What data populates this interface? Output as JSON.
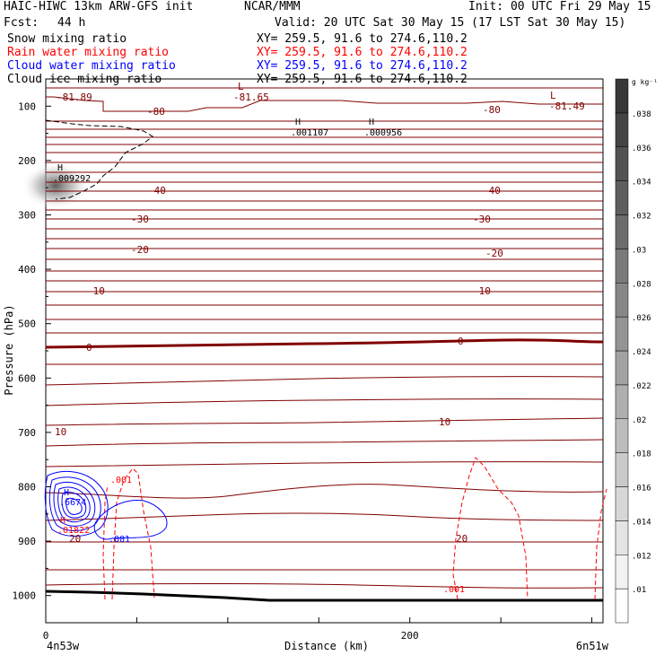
{
  "header": {
    "model": "HAIC-HIWC 13km ARW-GFS init",
    "org": "NCAR/MMM",
    "init": "Init: 00 UTC Fri 29 May 15",
    "fcst_label": "Fcst:",
    "fcst_value": "44 h",
    "valid": "Valid: 20 UTC Sat 30 May 15 (17 LST Sat 30 May 15)",
    "fields": [
      {
        "name": "Snow mixing ratio",
        "xy": "XY= 259.5, 91.6 to 274.6,110.2",
        "color": "#000000"
      },
      {
        "name": "Rain water mixing ratio",
        "xy": "XY= 259.5, 91.6 to 274.6,110.2",
        "color": "#ff0000"
      },
      {
        "name": "Cloud water mixing ratio",
        "xy": "XY= 259.5, 91.6 to 274.6,110.2",
        "color": "#0000ff"
      },
      {
        "name": "Cloud ice mixing ratio",
        "xy": "XY= 259.5, 91.6 to 274.6,110.2",
        "color": "#000000"
      }
    ]
  },
  "chart_data": {
    "type": "cross-section",
    "xlabel": "Distance (km)",
    "ylabel": "Pressure (hPa)",
    "xlim": [
      0,
      300
    ],
    "ylim": [
      1050,
      50
    ],
    "yscale": "log",
    "x_ticks": [
      "0",
      "200"
    ],
    "y_ticks": [
      "100",
      "200",
      "300",
      "400",
      "500",
      "600",
      "700",
      "800",
      "900",
      "1000"
    ],
    "left_endpoint": "4n53w",
    "right_endpoint": "6n51w",
    "colorbar": {
      "unit": "g kg⁻¹",
      "ticks": [
        ".01",
        ".012",
        ".014",
        ".016",
        ".018",
        ".02",
        ".022",
        ".024",
        ".026",
        ".028",
        ".03",
        ".032",
        ".034",
        ".036",
        ".038"
      ]
    },
    "temperature_labels": [
      "-81.89",
      "-81.65",
      "-81.49",
      "-80",
      "-80",
      "-40",
      "-40",
      "-30",
      "-30",
      "-20",
      "-20",
      "-10",
      "-10",
      "0",
      "0",
      "10",
      "10",
      "20",
      "20"
    ],
    "low_markers": [
      {
        "label": "L",
        "value": "-81.65"
      },
      {
        "label": "L",
        "value": "-81.49"
      }
    ],
    "high_markers": [
      {
        "label": "H",
        "value": ".001107"
      },
      {
        "label": "H",
        "value": ".000956"
      },
      {
        "label": "H",
        "value": ".009292"
      },
      {
        "label": "H",
        "value": ".6674"
      },
      {
        "label": "H",
        "value": ".01822"
      }
    ],
    "contour_labels": [
      {
        "value": ".001",
        "color": "#ff0000"
      },
      {
        "value": ".001",
        "color": "#0000ff"
      },
      {
        "value": ".001",
        "color": "#ff0000"
      }
    ]
  }
}
